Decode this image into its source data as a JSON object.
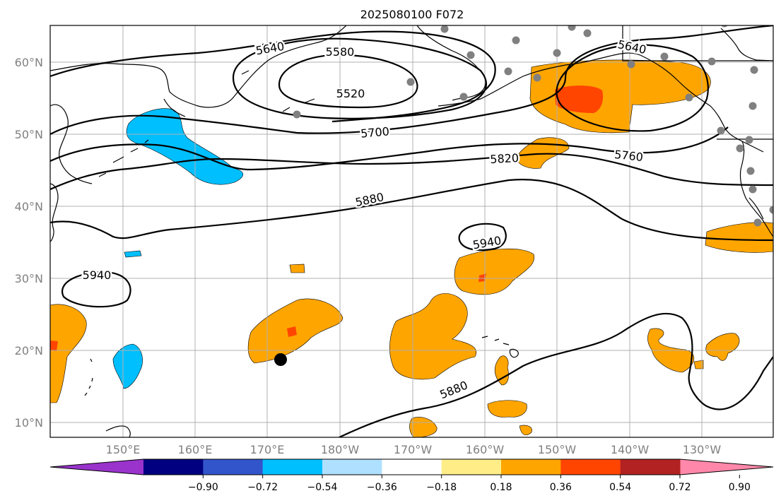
{
  "title": "2025080100 F072",
  "lat_labels": [
    "60°N",
    "50°N",
    "40°N",
    "30°N",
    "20°N",
    "10°N"
  ],
  "lon_labels": [
    "150°E",
    "160°E",
    "170°E",
    "180°W",
    "170°W",
    "160°W",
    "150°W",
    "140°W",
    "130°W"
  ],
  "contours": [
    {
      "label": "5520"
    },
    {
      "label": "5580"
    },
    {
      "label": "5640"
    },
    {
      "label": "5640"
    },
    {
      "label": "5700"
    },
    {
      "label": "5760"
    },
    {
      "label": "5820"
    },
    {
      "label": "5880"
    },
    {
      "label": "5880"
    },
    {
      "label": "5940"
    },
    {
      "label": "5940"
    }
  ],
  "colorbar": {
    "ticks": [
      "−0.90",
      "−0.72",
      "−0.54",
      "−0.36",
      "−0.18",
      "0.18",
      "0.36",
      "0.54",
      "0.72",
      "0.90"
    ],
    "colors": [
      "#9933cc",
      "#000080",
      "#3355cc",
      "#00bfff",
      "#b0e0ff",
      "#ffffff",
      "#ffee88",
      "#ffa500",
      "#ff4500",
      "#b22222",
      "#ff88aa"
    ]
  },
  "fill_colors": {
    "orange": "#ffa500",
    "red_orange": "#ff4500",
    "blue": "#00bfff"
  },
  "station_color": "#808080"
}
